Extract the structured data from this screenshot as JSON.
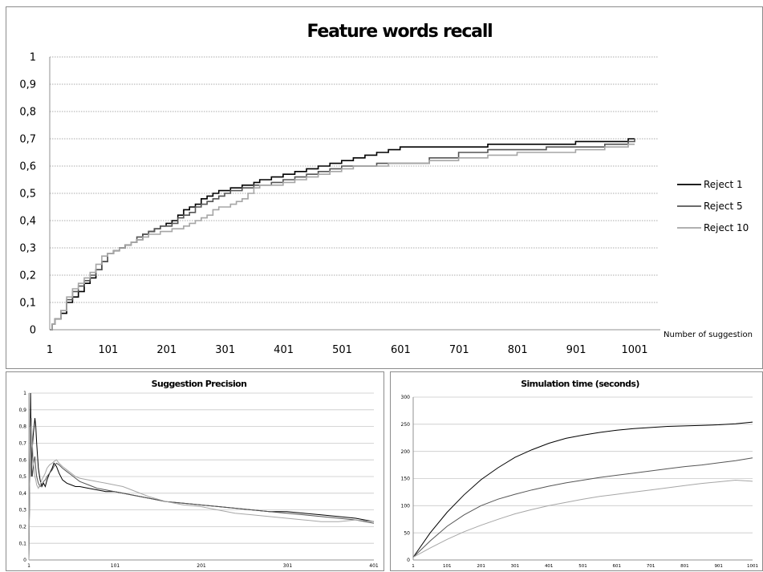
{
  "chart_data": [
    {
      "type": "line",
      "title": "Feature words recall",
      "xlabel": "Number of suggestion",
      "ylabel": "",
      "x_ticks": [
        "1",
        "101",
        "201",
        "301",
        "401",
        "501",
        "601",
        "701",
        "801",
        "901",
        "1001"
      ],
      "y_ticks": [
        "0",
        "0,1",
        "0,2",
        "0,3",
        "0,4",
        "0,5",
        "0,6",
        "0,7",
        "0,8",
        "0,9",
        "1"
      ],
      "xlim": [
        1,
        1001
      ],
      "ylim": [
        0,
        1
      ],
      "grid": true,
      "legend": "right",
      "series": [
        {
          "name": "Reject 1",
          "color": "#000000",
          "step": true,
          "x": [
            1,
            5,
            10,
            20,
            30,
            40,
            50,
            60,
            70,
            80,
            90,
            100,
            110,
            120,
            130,
            140,
            150,
            160,
            170,
            180,
            190,
            200,
            210,
            220,
            230,
            240,
            250,
            260,
            270,
            280,
            290,
            300,
            310,
            320,
            330,
            340,
            350,
            360,
            380,
            400,
            420,
            440,
            460,
            480,
            500,
            520,
            540,
            560,
            580,
            600,
            650,
            700,
            750,
            800,
            850,
            900,
            950,
            990,
            1001
          ],
          "y": [
            0,
            0.02,
            0.04,
            0.06,
            0.1,
            0.12,
            0.14,
            0.17,
            0.19,
            0.22,
            0.25,
            0.28,
            0.29,
            0.3,
            0.31,
            0.32,
            0.33,
            0.35,
            0.36,
            0.37,
            0.38,
            0.39,
            0.4,
            0.42,
            0.44,
            0.45,
            0.46,
            0.48,
            0.49,
            0.5,
            0.51,
            0.51,
            0.52,
            0.52,
            0.53,
            0.53,
            0.54,
            0.55,
            0.56,
            0.57,
            0.58,
            0.59,
            0.6,
            0.61,
            0.62,
            0.63,
            0.64,
            0.65,
            0.66,
            0.67,
            0.67,
            0.67,
            0.68,
            0.68,
            0.68,
            0.69,
            0.69,
            0.7,
            0.7
          ]
        },
        {
          "name": "Reject 5",
          "color": "#555555",
          "step": true,
          "x": [
            1,
            5,
            10,
            20,
            30,
            40,
            50,
            60,
            70,
            80,
            90,
            100,
            110,
            120,
            130,
            140,
            150,
            160,
            170,
            180,
            190,
            200,
            210,
            220,
            230,
            240,
            250,
            260,
            270,
            280,
            290,
            300,
            310,
            320,
            330,
            340,
            350,
            360,
            380,
            400,
            420,
            440,
            460,
            480,
            500,
            520,
            540,
            560,
            580,
            600,
            650,
            700,
            750,
            800,
            850,
            900,
            950,
            990,
            1001
          ],
          "y": [
            0,
            0.02,
            0.04,
            0.07,
            0.11,
            0.14,
            0.16,
            0.18,
            0.2,
            0.22,
            0.25,
            0.28,
            0.29,
            0.3,
            0.31,
            0.32,
            0.34,
            0.35,
            0.36,
            0.37,
            0.38,
            0.38,
            0.39,
            0.41,
            0.42,
            0.43,
            0.45,
            0.46,
            0.47,
            0.48,
            0.49,
            0.5,
            0.51,
            0.51,
            0.52,
            0.52,
            0.53,
            0.53,
            0.54,
            0.55,
            0.56,
            0.57,
            0.58,
            0.59,
            0.6,
            0.6,
            0.6,
            0.61,
            0.61,
            0.61,
            0.63,
            0.65,
            0.66,
            0.66,
            0.67,
            0.67,
            0.68,
            0.69,
            0.7
          ]
        },
        {
          "name": "Reject 10",
          "color": "#a6a6a6",
          "step": true,
          "x": [
            1,
            5,
            10,
            20,
            30,
            40,
            50,
            60,
            70,
            80,
            90,
            100,
            110,
            120,
            130,
            140,
            150,
            160,
            170,
            180,
            190,
            200,
            210,
            220,
            230,
            240,
            250,
            260,
            270,
            280,
            290,
            300,
            310,
            320,
            330,
            340,
            350,
            360,
            380,
            400,
            420,
            440,
            460,
            480,
            500,
            520,
            540,
            560,
            580,
            600,
            650,
            700,
            750,
            800,
            850,
            900,
            950,
            990,
            1001
          ],
          "y": [
            0,
            0.02,
            0.04,
            0.07,
            0.12,
            0.15,
            0.17,
            0.19,
            0.21,
            0.24,
            0.27,
            0.28,
            0.29,
            0.3,
            0.31,
            0.32,
            0.33,
            0.34,
            0.35,
            0.35,
            0.36,
            0.36,
            0.37,
            0.37,
            0.38,
            0.39,
            0.4,
            0.41,
            0.42,
            0.44,
            0.45,
            0.45,
            0.46,
            0.47,
            0.48,
            0.5,
            0.52,
            0.53,
            0.53,
            0.54,
            0.55,
            0.56,
            0.57,
            0.58,
            0.59,
            0.6,
            0.6,
            0.6,
            0.61,
            0.61,
            0.62,
            0.63,
            0.64,
            0.65,
            0.65,
            0.66,
            0.67,
            0.68,
            0.68
          ]
        }
      ]
    },
    {
      "type": "line",
      "title": "Suggestion Precision",
      "xlabel": "",
      "ylabel": "",
      "x_ticks": [
        "1",
        "101",
        "201",
        "301",
        "401"
      ],
      "y_ticks": [
        "0",
        "0,1",
        "0,2",
        "0,3",
        "0,4",
        "0,5",
        "0,6",
        "0,7",
        "0,8",
        "0,9",
        "1"
      ],
      "xlim": [
        1,
        401
      ],
      "ylim": [
        0,
        1
      ],
      "grid": true,
      "legend": "none",
      "series": [
        {
          "name": "",
          "color": "#000000",
          "x": [
            1,
            2,
            3,
            4,
            5,
            6,
            7,
            8,
            9,
            10,
            12,
            14,
            16,
            18,
            20,
            22,
            25,
            28,
            30,
            33,
            36,
            40,
            45,
            50,
            55,
            60,
            70,
            80,
            90,
            100,
            110,
            120,
            140,
            160,
            180,
            200,
            220,
            240,
            260,
            280,
            300,
            320,
            340,
            360,
            380,
            401
          ],
          "y": [
            0,
            0.5,
            1.0,
            0.5,
            0.67,
            0.75,
            0.8,
            0.85,
            0.8,
            0.7,
            0.55,
            0.48,
            0.44,
            0.46,
            0.44,
            0.48,
            0.52,
            0.55,
            0.58,
            0.56,
            0.52,
            0.48,
            0.46,
            0.45,
            0.44,
            0.44,
            0.43,
            0.42,
            0.41,
            0.41,
            0.4,
            0.39,
            0.37,
            0.35,
            0.34,
            0.33,
            0.32,
            0.31,
            0.3,
            0.29,
            0.29,
            0.28,
            0.27,
            0.26,
            0.25,
            0.23
          ]
        },
        {
          "name": "",
          "color": "#555555",
          "x": [
            1,
            2,
            3,
            4,
            5,
            6,
            7,
            8,
            9,
            10,
            12,
            14,
            16,
            18,
            20,
            22,
            25,
            28,
            30,
            33,
            36,
            40,
            45,
            50,
            55,
            60,
            70,
            80,
            90,
            100,
            110,
            120,
            140,
            160,
            180,
            200,
            220,
            240,
            260,
            280,
            300,
            320,
            340,
            360,
            380,
            401
          ],
          "y": [
            0,
            0.5,
            0.8,
            0.6,
            0.5,
            0.55,
            0.6,
            0.62,
            0.55,
            0.5,
            0.46,
            0.44,
            0.45,
            0.47,
            0.48,
            0.5,
            0.52,
            0.54,
            0.56,
            0.58,
            0.57,
            0.55,
            0.53,
            0.51,
            0.49,
            0.47,
            0.45,
            0.43,
            0.42,
            0.41,
            0.4,
            0.39,
            0.37,
            0.35,
            0.34,
            0.33,
            0.32,
            0.31,
            0.3,
            0.29,
            0.28,
            0.27,
            0.26,
            0.25,
            0.24,
            0.22
          ]
        },
        {
          "name": "",
          "color": "#a6a6a6",
          "x": [
            1,
            2,
            3,
            4,
            5,
            6,
            7,
            8,
            9,
            10,
            12,
            14,
            16,
            18,
            20,
            22,
            25,
            28,
            30,
            33,
            36,
            40,
            45,
            50,
            55,
            60,
            70,
            80,
            90,
            100,
            110,
            120,
            140,
            160,
            180,
            200,
            220,
            240,
            260,
            280,
            300,
            320,
            340,
            360,
            380,
            401
          ],
          "y": [
            0,
            0.5,
            0.75,
            0.85,
            0.7,
            0.6,
            0.55,
            0.5,
            0.48,
            0.45,
            0.43,
            0.45,
            0.48,
            0.5,
            0.52,
            0.55,
            0.57,
            0.58,
            0.59,
            0.6,
            0.58,
            0.56,
            0.54,
            0.52,
            0.5,
            0.49,
            0.48,
            0.47,
            0.46,
            0.45,
            0.44,
            0.42,
            0.38,
            0.35,
            0.33,
            0.32,
            0.3,
            0.28,
            0.27,
            0.26,
            0.25,
            0.24,
            0.23,
            0.23,
            0.24,
            0.23
          ]
        }
      ]
    },
    {
      "type": "line",
      "title": "Simulation time (seconds)",
      "xlabel": "",
      "ylabel": "",
      "x_ticks": [
        "1",
        "101",
        "201",
        "301",
        "401",
        "501",
        "601",
        "701",
        "801",
        "901",
        "1001"
      ],
      "y_ticks": [
        "0",
        "50",
        "100",
        "150",
        "200",
        "250",
        "300"
      ],
      "xlim": [
        1,
        1001
      ],
      "ylim": [
        0,
        300
      ],
      "grid": true,
      "legend": "none",
      "series": [
        {
          "name": "",
          "color": "#000000",
          "x": [
            1,
            51,
            101,
            151,
            201,
            251,
            301,
            351,
            401,
            451,
            501,
            551,
            601,
            651,
            701,
            751,
            801,
            851,
            901,
            951,
            1001
          ],
          "y": [
            5,
            50,
            88,
            120,
            148,
            170,
            189,
            203,
            215,
            224,
            230,
            235,
            239,
            242,
            244,
            246,
            247,
            248,
            249,
            251,
            254
          ]
        },
        {
          "name": "",
          "color": "#555555",
          "x": [
            1,
            51,
            101,
            151,
            201,
            251,
            301,
            351,
            401,
            451,
            501,
            551,
            601,
            651,
            701,
            751,
            801,
            851,
            901,
            951,
            1001
          ],
          "y": [
            5,
            35,
            62,
            83,
            100,
            112,
            121,
            129,
            136,
            142,
            147,
            152,
            156,
            160,
            164,
            168,
            172,
            175,
            179,
            183,
            188
          ]
        },
        {
          "name": "",
          "color": "#a6a6a6",
          "x": [
            1,
            51,
            101,
            151,
            201,
            251,
            301,
            351,
            401,
            451,
            501,
            551,
            601,
            651,
            701,
            751,
            801,
            851,
            901,
            951,
            1001
          ],
          "y": [
            5,
            22,
            38,
            52,
            64,
            75,
            85,
            93,
            100,
            106,
            112,
            117,
            121,
            125,
            129,
            133,
            137,
            141,
            144,
            147,
            145
          ]
        }
      ]
    }
  ]
}
